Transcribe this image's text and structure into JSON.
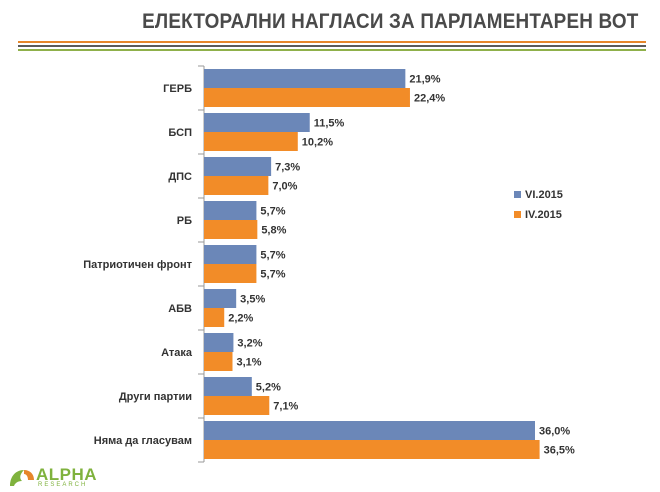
{
  "header": {
    "title": "ЕЛЕКТОРАЛНИ НАГЛАСИ ЗА ПАРЛАМЕНТАРЕН ВОТ",
    "rule_colors": [
      "#e6862a",
      "#5a5a5a",
      "#8fb04a"
    ]
  },
  "logo": {
    "name": "ALPHA",
    "sub": "RESEARCH",
    "color": "#7fb23d"
  },
  "chart_data": {
    "type": "bar",
    "orientation": "horizontal",
    "categories": [
      "ГЕРБ",
      "БСП",
      "ДПС",
      "РБ",
      "Патриотичен фронт",
      "АБВ",
      "Атака",
      "Други партии",
      "Няма да гласувам"
    ],
    "series": [
      {
        "name": "VI.2015",
        "color": "#6b87b8",
        "values": [
          21.9,
          11.5,
          7.3,
          5.7,
          5.7,
          3.5,
          3.2,
          5.2,
          36.0
        ],
        "labels": [
          "21,9%",
          "11,5%",
          "7,3%",
          "5,7%",
          "5,7%",
          "3,5%",
          "3,2%",
          "5,2%",
          "36,0%"
        ]
      },
      {
        "name": "IV.2015",
        "color": "#f28c28",
        "values": [
          22.4,
          10.2,
          7.0,
          5.8,
          5.7,
          2.2,
          3.1,
          7.1,
          36.5
        ],
        "labels": [
          "22,4%",
          "10,2%",
          "7,0%",
          "5,8%",
          "5,7%",
          "2,2%",
          "3,1%",
          "7,1%",
          "36,5%"
        ]
      }
    ],
    "legend_position": "right",
    "grid": false
  }
}
